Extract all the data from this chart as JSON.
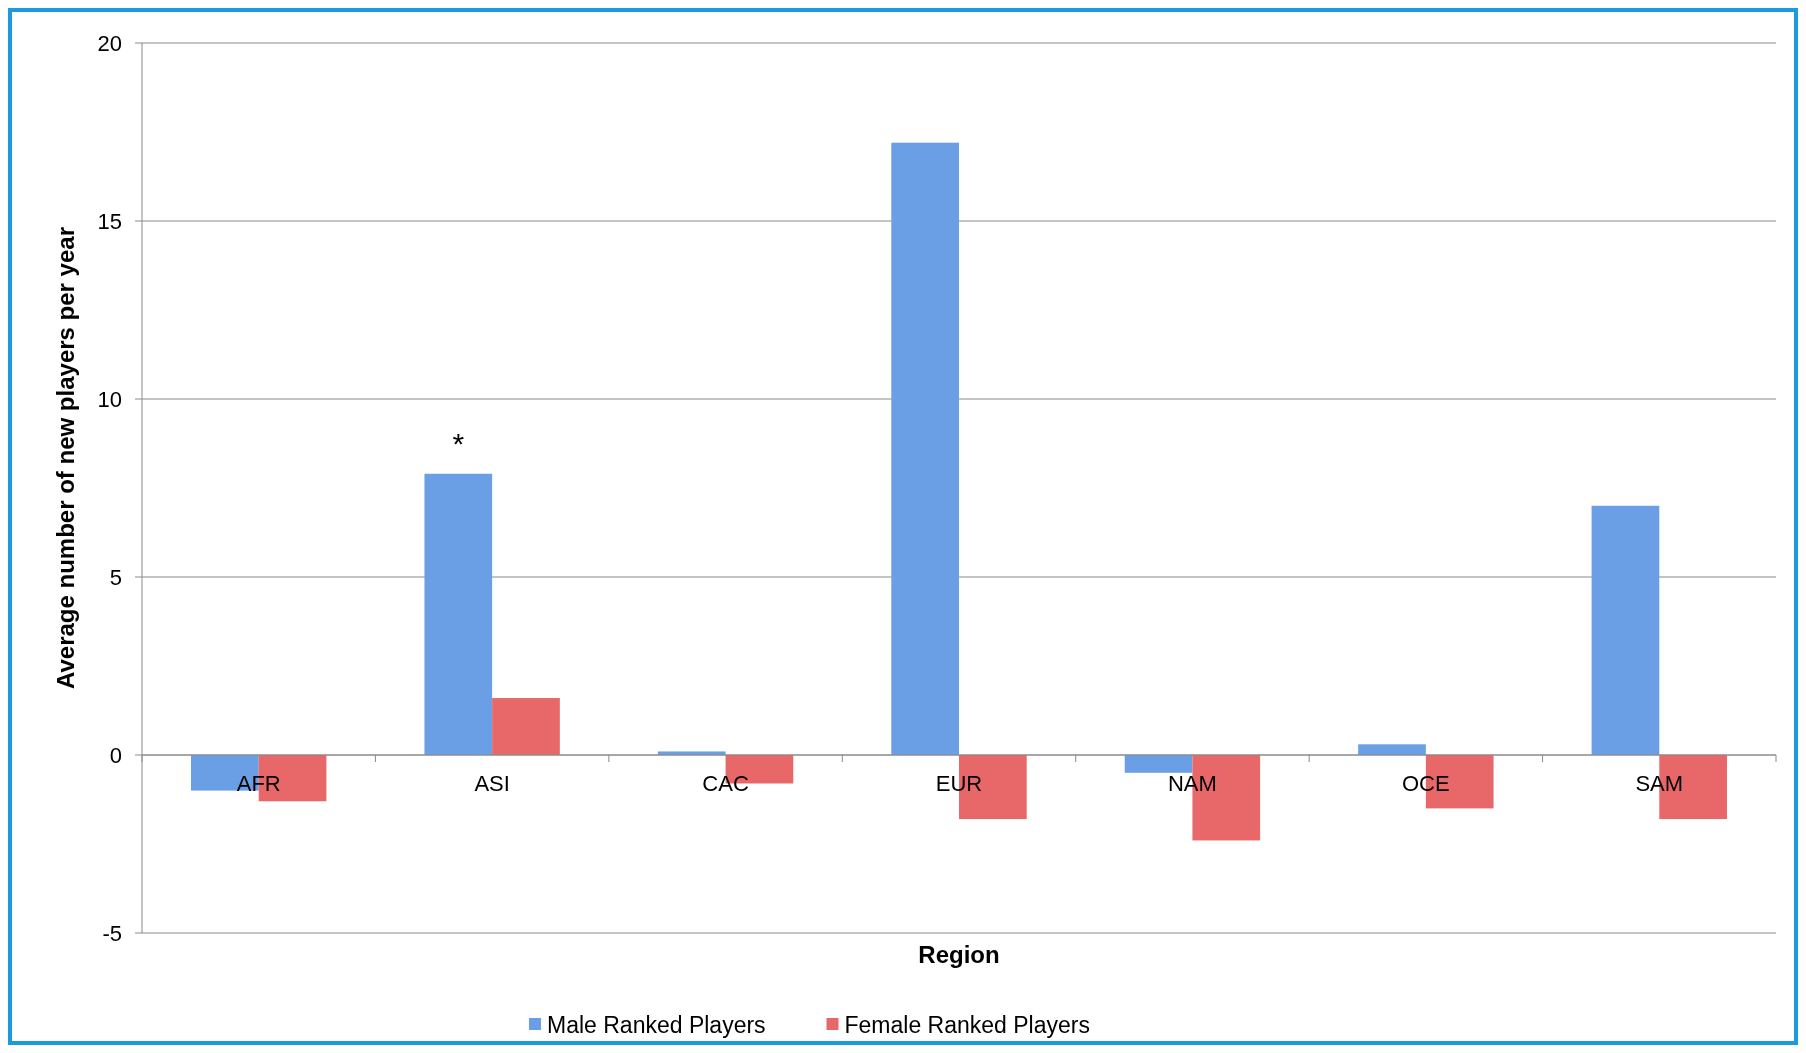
{
  "chart_data": {
    "type": "bar",
    "xlabel": "Region",
    "ylabel": "Average number of new players per year",
    "categories": [
      "AFR",
      "ASI",
      "CAC",
      "EUR",
      "NAM",
      "OCE",
      "SAM"
    ],
    "series": [
      {
        "name": "Male Ranked Players",
        "color": "#6a9fe6",
        "values": [
          -1.0,
          7.9,
          0.1,
          17.2,
          -0.5,
          0.3,
          7.0
        ]
      },
      {
        "name": "Female Ranked Players",
        "color": "#e8686a",
        "values": [
          -1.3,
          1.6,
          -0.8,
          -1.8,
          -2.4,
          -1.5,
          -1.8
        ]
      }
    ],
    "ylim": [
      -5,
      20
    ],
    "yticks": [
      -5,
      0,
      5,
      10,
      15,
      20
    ],
    "grid": "y",
    "legend": "bottom",
    "annotations": [
      {
        "text": "*",
        "x": "ASI",
        "y": 7.9
      }
    ]
  }
}
